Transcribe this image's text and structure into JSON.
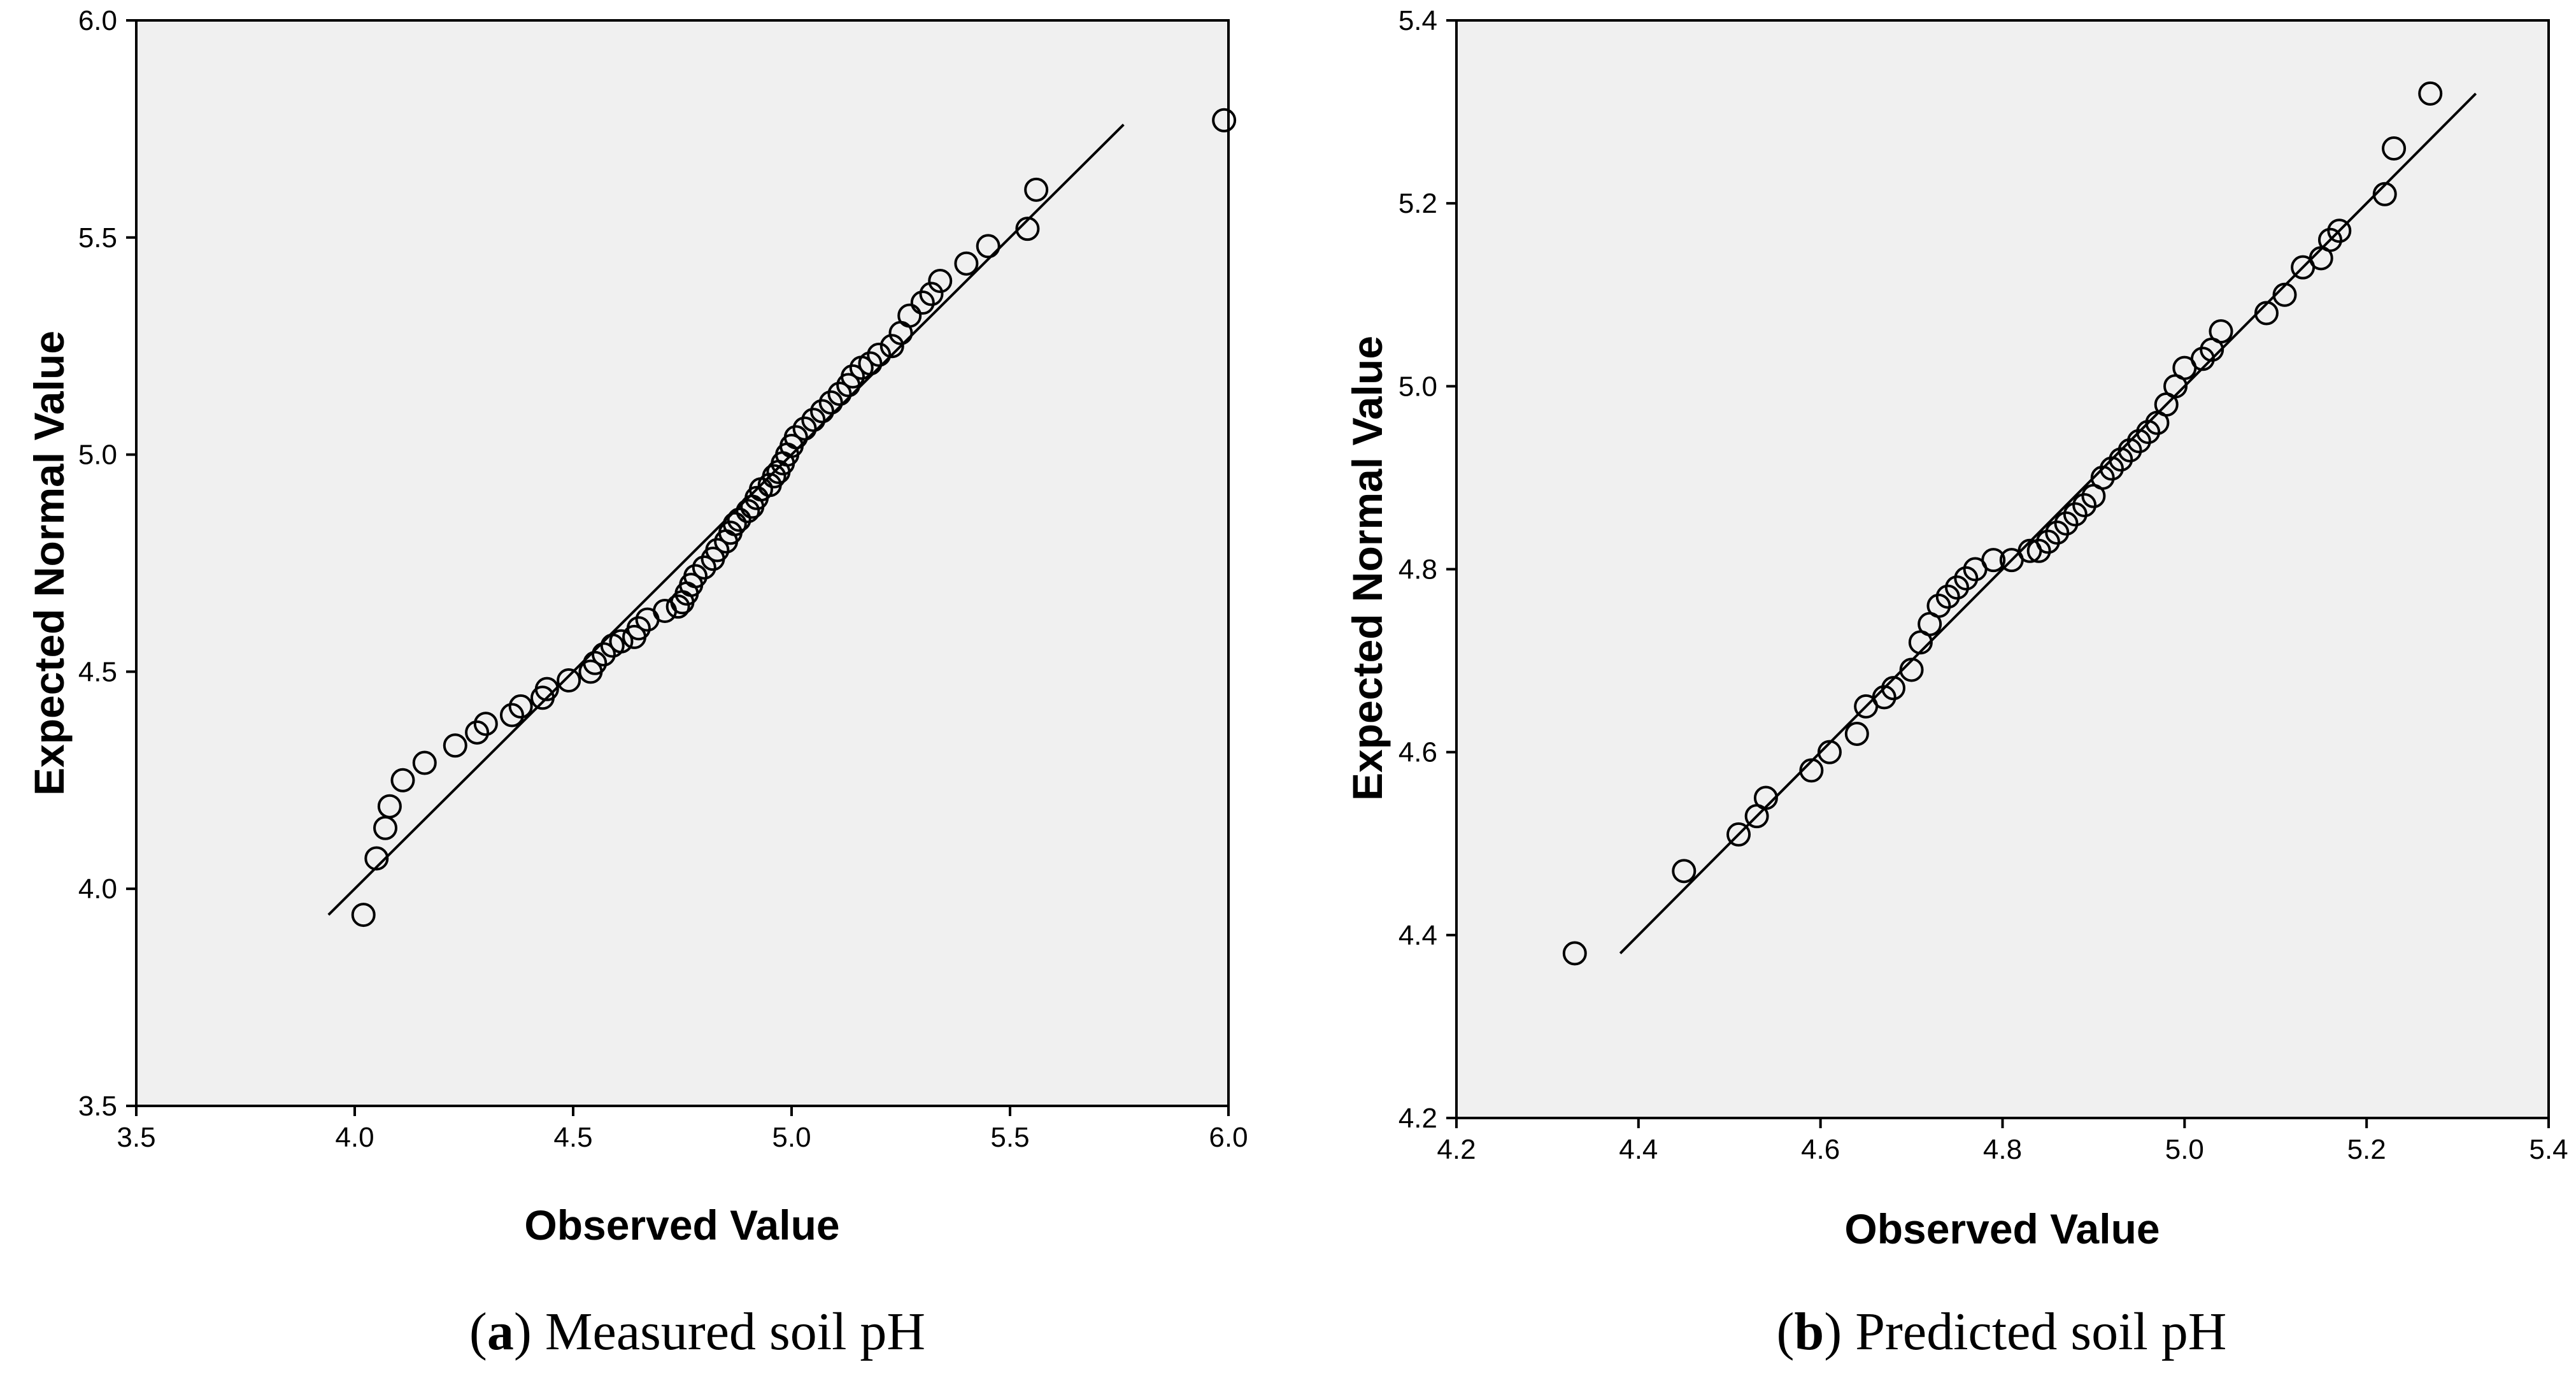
{
  "chart_data": [
    {
      "type": "scatter",
      "ylabel": "Expected Normal Value",
      "xlabel": "Observed Value",
      "caption_letter": "a",
      "caption_text": "Measured soil pH",
      "xlim": [
        3.5,
        6.0
      ],
      "ylim": [
        3.5,
        6.0
      ],
      "xticks": [
        3.5,
        4.0,
        4.5,
        5.0,
        5.5,
        6.0
      ],
      "yticks": [
        3.5,
        4.0,
        4.5,
        5.0,
        5.5,
        6.0
      ],
      "xtick_labels": [
        "3.5",
        "4.0",
        "4.5",
        "5.0",
        "5.5",
        "6.0"
      ],
      "ytick_labels": [
        "3.5",
        "4.0",
        "4.5",
        "5.0",
        "5.5",
        "6.0"
      ],
      "reference_line": [
        [
          3.94,
          3.94
        ],
        [
          5.76,
          5.76
        ]
      ],
      "points": [
        [
          4.02,
          3.94
        ],
        [
          4.05,
          4.07
        ],
        [
          4.07,
          4.14
        ],
        [
          4.08,
          4.19
        ],
        [
          4.11,
          4.25
        ],
        [
          4.16,
          4.29
        ],
        [
          4.23,
          4.33
        ],
        [
          4.28,
          4.36
        ],
        [
          4.3,
          4.38
        ],
        [
          4.36,
          4.4
        ],
        [
          4.38,
          4.42
        ],
        [
          4.43,
          4.44
        ],
        [
          4.44,
          4.46
        ],
        [
          4.49,
          4.48
        ],
        [
          4.54,
          4.5
        ],
        [
          4.55,
          4.52
        ],
        [
          4.57,
          4.54
        ],
        [
          4.59,
          4.56
        ],
        [
          4.61,
          4.57
        ],
        [
          4.64,
          4.58
        ],
        [
          4.65,
          4.6
        ],
        [
          4.67,
          4.62
        ],
        [
          4.71,
          4.64
        ],
        [
          4.74,
          4.65
        ],
        [
          4.75,
          4.66
        ],
        [
          4.76,
          4.68
        ],
        [
          4.77,
          4.7
        ],
        [
          4.78,
          4.72
        ],
        [
          4.8,
          4.74
        ],
        [
          4.82,
          4.76
        ],
        [
          4.83,
          4.78
        ],
        [
          4.85,
          4.8
        ],
        [
          4.86,
          4.82
        ],
        [
          4.87,
          4.84
        ],
        [
          4.88,
          4.85
        ],
        [
          4.9,
          4.87
        ],
        [
          4.91,
          4.88
        ],
        [
          4.92,
          4.9
        ],
        [
          4.93,
          4.92
        ],
        [
          4.95,
          4.93
        ],
        [
          4.96,
          4.95
        ],
        [
          4.97,
          4.96
        ],
        [
          4.98,
          4.98
        ],
        [
          4.99,
          5.0
        ],
        [
          5.0,
          5.02
        ],
        [
          5.01,
          5.04
        ],
        [
          5.03,
          5.06
        ],
        [
          5.05,
          5.08
        ],
        [
          5.07,
          5.1
        ],
        [
          5.09,
          5.12
        ],
        [
          5.11,
          5.14
        ],
        [
          5.13,
          5.16
        ],
        [
          5.14,
          5.18
        ],
        [
          5.16,
          5.2
        ],
        [
          5.18,
          5.21
        ],
        [
          5.2,
          5.23
        ],
        [
          5.23,
          5.25
        ],
        [
          5.25,
          5.28
        ],
        [
          5.27,
          5.32
        ],
        [
          5.3,
          5.35
        ],
        [
          5.32,
          5.37
        ],
        [
          5.34,
          5.4
        ],
        [
          5.4,
          5.44
        ],
        [
          5.45,
          5.48
        ],
        [
          5.54,
          5.52
        ],
        [
          5.56,
          5.61
        ],
        [
          5.99,
          5.77
        ]
      ]
    },
    {
      "type": "scatter",
      "ylabel": "Expected Normal Value",
      "xlabel": "Observed Value",
      "caption_letter": "b",
      "caption_text": "Predicted soil pH",
      "xlim": [
        4.2,
        5.4
      ],
      "ylim": [
        4.2,
        5.4
      ],
      "xticks": [
        4.2,
        4.4,
        4.6,
        4.8,
        5.0,
        5.2,
        5.4
      ],
      "yticks": [
        4.2,
        4.4,
        4.6,
        4.8,
        5.0,
        5.2,
        5.4
      ],
      "xtick_labels": [
        "4.2",
        "4.4",
        "4.6",
        "4.8",
        "5.0",
        "5.2",
        "5.4"
      ],
      "ytick_labels": [
        "4.2",
        "4.4",
        "4.6",
        "4.8",
        "5.0",
        "5.2",
        "5.4"
      ],
      "reference_line": [
        [
          4.38,
          4.38
        ],
        [
          5.32,
          5.32
        ]
      ],
      "points": [
        [
          4.33,
          4.38
        ],
        [
          4.45,
          4.47
        ],
        [
          4.51,
          4.51
        ],
        [
          4.53,
          4.53
        ],
        [
          4.54,
          4.55
        ],
        [
          4.59,
          4.58
        ],
        [
          4.61,
          4.6
        ],
        [
          4.64,
          4.62
        ],
        [
          4.65,
          4.65
        ],
        [
          4.67,
          4.66
        ],
        [
          4.68,
          4.67
        ],
        [
          4.7,
          4.69
        ],
        [
          4.71,
          4.72
        ],
        [
          4.72,
          4.74
        ],
        [
          4.73,
          4.76
        ],
        [
          4.74,
          4.77
        ],
        [
          4.75,
          4.78
        ],
        [
          4.76,
          4.79
        ],
        [
          4.77,
          4.8
        ],
        [
          4.79,
          4.81
        ],
        [
          4.81,
          4.81
        ],
        [
          4.83,
          4.82
        ],
        [
          4.84,
          4.82
        ],
        [
          4.85,
          4.83
        ],
        [
          4.86,
          4.84
        ],
        [
          4.87,
          4.85
        ],
        [
          4.88,
          4.86
        ],
        [
          4.89,
          4.87
        ],
        [
          4.9,
          4.88
        ],
        [
          4.91,
          4.9
        ],
        [
          4.92,
          4.91
        ],
        [
          4.93,
          4.92
        ],
        [
          4.94,
          4.93
        ],
        [
          4.95,
          4.94
        ],
        [
          4.96,
          4.95
        ],
        [
          4.97,
          4.96
        ],
        [
          4.98,
          4.98
        ],
        [
          4.99,
          5.0
        ],
        [
          5.0,
          5.02
        ],
        [
          5.02,
          5.03
        ],
        [
          5.03,
          5.04
        ],
        [
          5.04,
          5.06
        ],
        [
          5.09,
          5.08
        ],
        [
          5.11,
          5.1
        ],
        [
          5.13,
          5.13
        ],
        [
          5.15,
          5.14
        ],
        [
          5.16,
          5.16
        ],
        [
          5.17,
          5.17
        ],
        [
          5.22,
          5.21
        ],
        [
          5.23,
          5.26
        ],
        [
          5.27,
          5.32
        ]
      ]
    }
  ]
}
